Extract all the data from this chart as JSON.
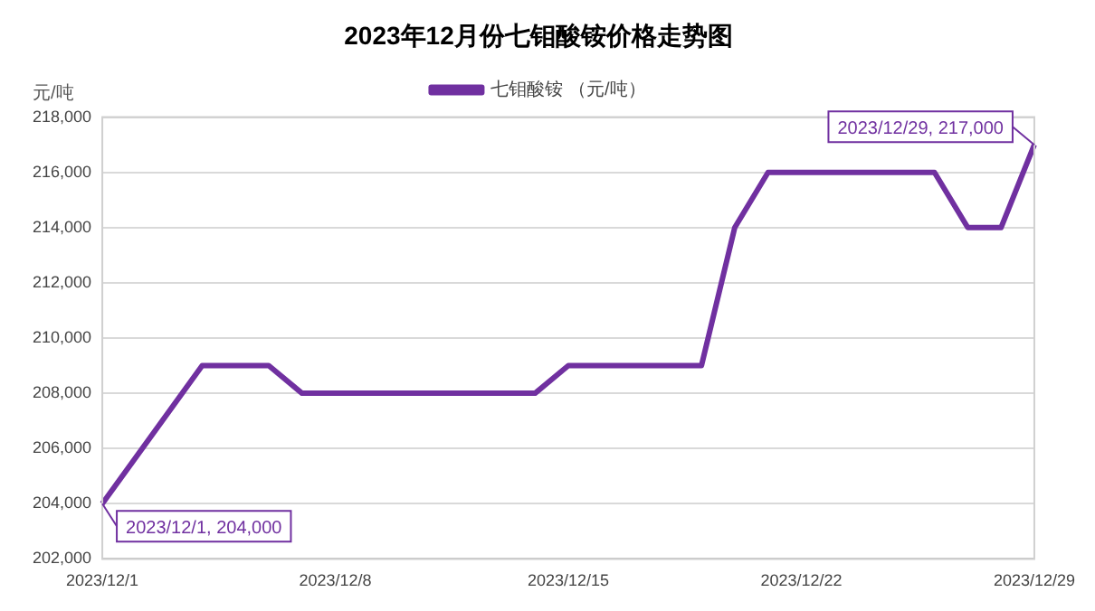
{
  "chart_data": {
    "type": "line",
    "title": "2023年12月份七钼酸铵价格走势图",
    "ylabel": "元/吨",
    "categories": [
      "2023/12/1",
      null,
      null,
      null,
      null,
      null,
      null,
      "2023/12/8",
      null,
      null,
      null,
      null,
      null,
      null,
      "2023/12/15",
      null,
      null,
      null,
      null,
      null,
      null,
      "2023/12/22",
      null,
      null,
      null,
      null,
      null,
      null,
      "2023/12/29"
    ],
    "series": [
      {
        "name": "七钼酸铵 （元/吨）",
        "color": "#7030a0",
        "values": [
          204000,
          null,
          null,
          209000,
          null,
          209000,
          208000,
          null,
          null,
          null,
          null,
          null,
          null,
          208000,
          209000,
          null,
          null,
          null,
          209000,
          214000,
          216000,
          null,
          null,
          null,
          null,
          216000,
          214000,
          214000,
          217000
        ]
      }
    ],
    "ylim": [
      202000,
      218000
    ],
    "yticks": [
      {
        "value": 202000,
        "label": "202,000"
      },
      {
        "value": 204000,
        "label": "204,000"
      },
      {
        "value": 206000,
        "label": "206,000"
      },
      {
        "value": 208000,
        "label": "208,000"
      },
      {
        "value": 210000,
        "label": "210,000"
      },
      {
        "value": 212000,
        "label": "212,000"
      },
      {
        "value": 214000,
        "label": "214,000"
      },
      {
        "value": 216000,
        "label": "216,000"
      },
      {
        "value": 218000,
        "label": "218,000"
      }
    ],
    "grid": "y",
    "legend": "top",
    "marker": "none",
    "line_style": "solid",
    "annotations": [
      {
        "text": "2023/12/1, 204,000",
        "x": "2023/12/1",
        "y": 204000
      },
      {
        "text": "2023/12/29, 217,000",
        "x": "2023/12/29",
        "y": 217000
      }
    ]
  }
}
